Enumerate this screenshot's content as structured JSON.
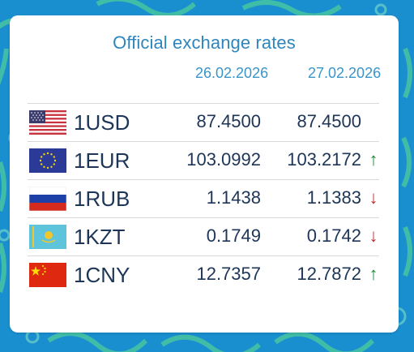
{
  "title": "Official exchange rates",
  "dates": [
    "26.02.2026",
    "27.02.2026"
  ],
  "colors": {
    "up": "#1a8c3a",
    "down": "#c0272d",
    "text": "#1d3557",
    "accent": "#2f86bd"
  },
  "rates": [
    {
      "code": "1USD",
      "flag": "us-flag-icon",
      "rate_1": "87.4500",
      "rate_2": "87.4500",
      "trend": ""
    },
    {
      "code": "1EUR",
      "flag": "eu-flag-icon",
      "rate_1": "103.0992",
      "rate_2": "103.2172",
      "trend": "↑"
    },
    {
      "code": "1RUB",
      "flag": "ru-flag-icon",
      "rate_1": "1.1438",
      "rate_2": "1.1383",
      "trend": "↓"
    },
    {
      "code": "1KZT",
      "flag": "kz-flag-icon",
      "rate_1": "0.1749",
      "rate_2": "0.1742",
      "trend": "↓"
    },
    {
      "code": "1CNY",
      "flag": "cn-flag-icon",
      "rate_1": "12.7357",
      "rate_2": "12.7872",
      "trend": "↑"
    }
  ]
}
